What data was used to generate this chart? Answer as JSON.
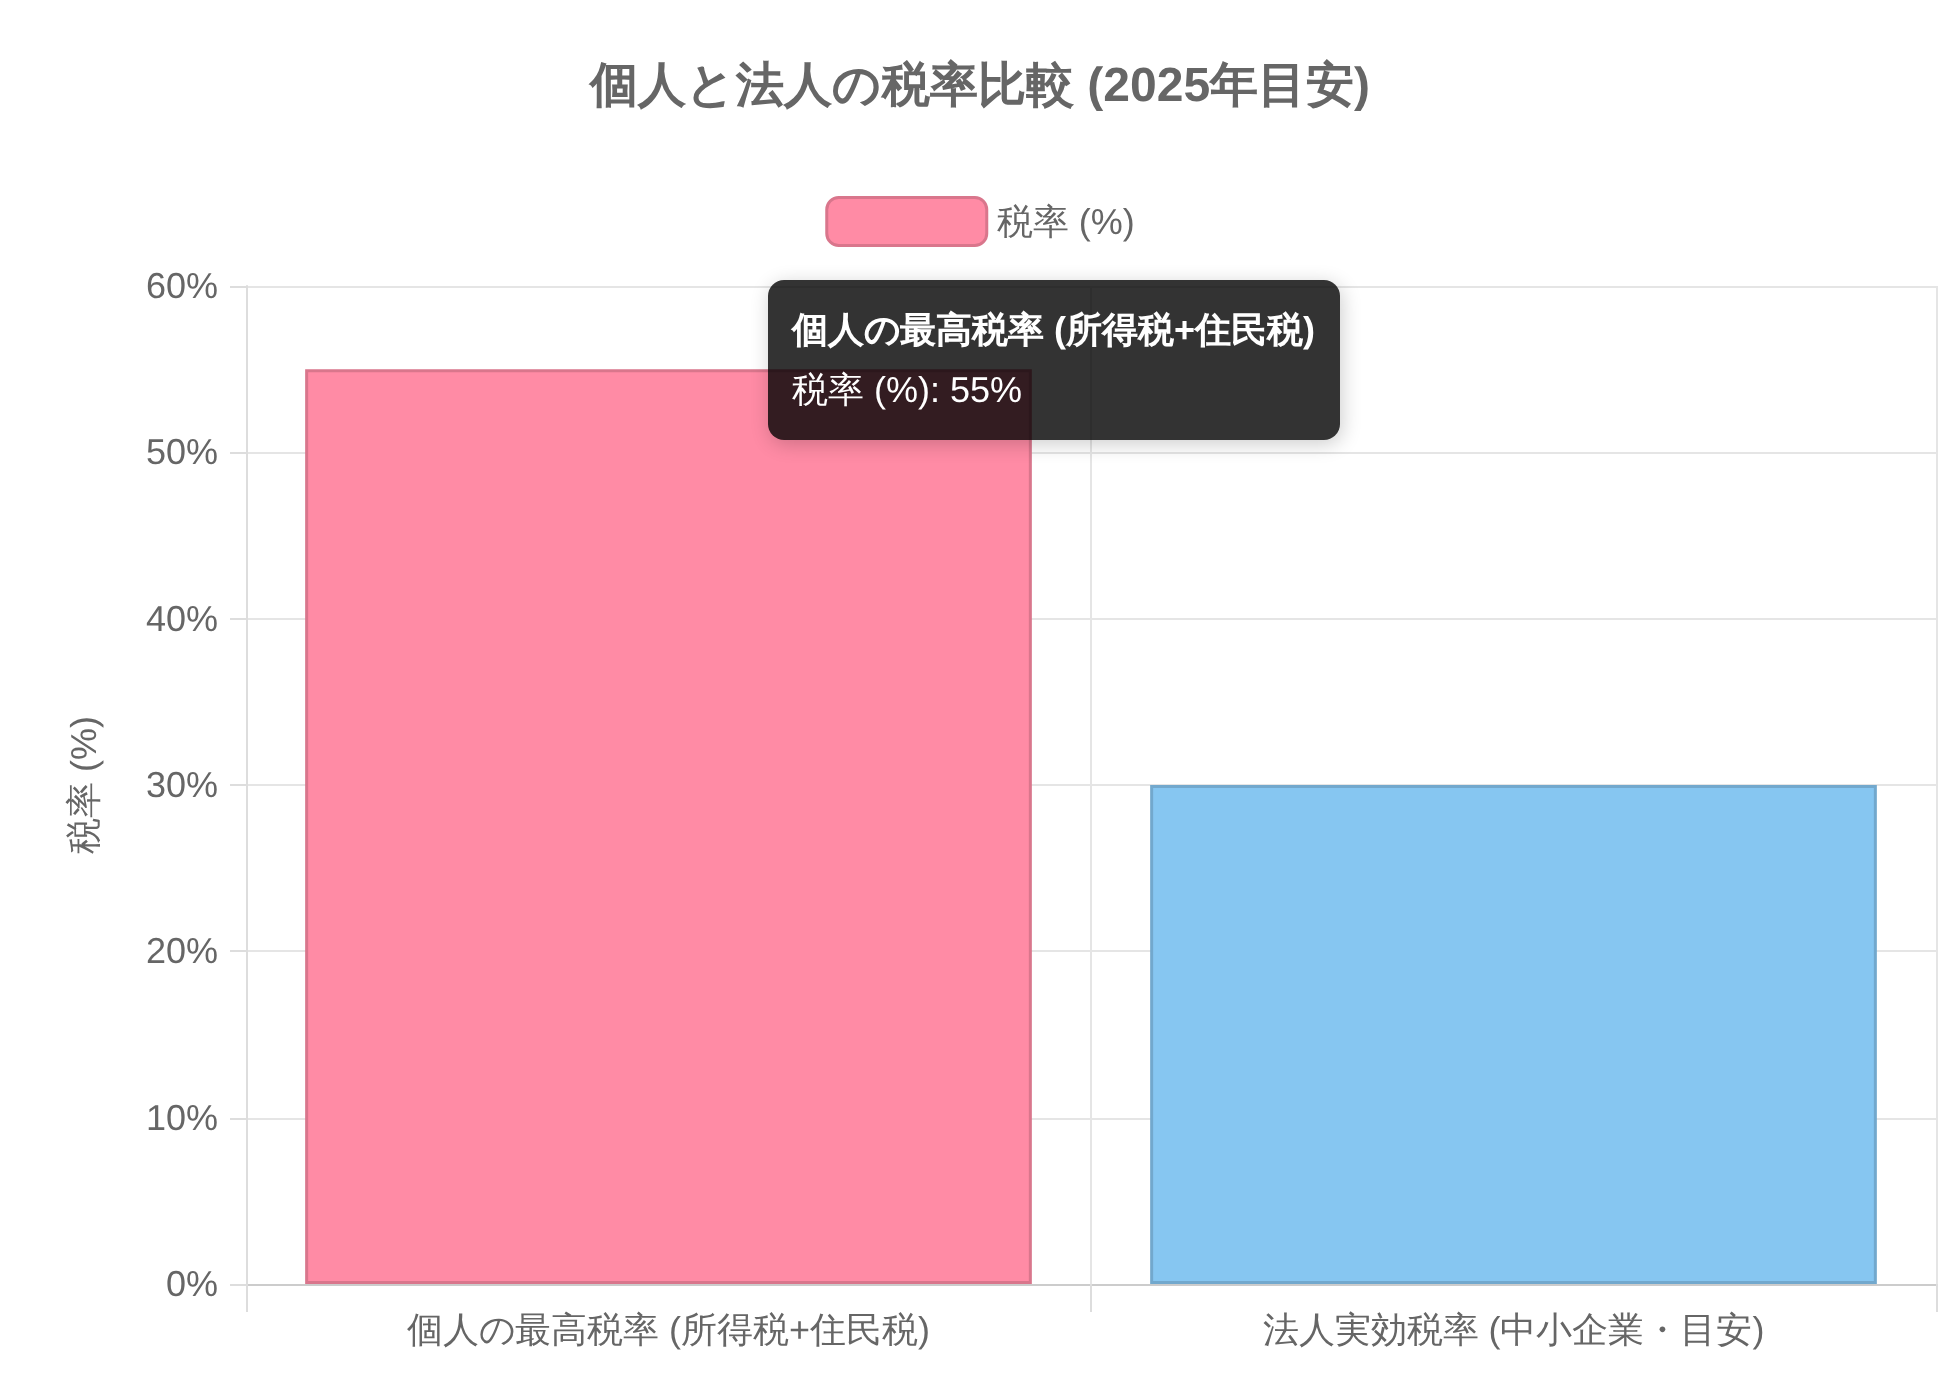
{
  "chart_data": {
    "type": "bar",
    "title": "個人と法人の税率比較 (2025年目安)",
    "ylabel": "税率 (%)",
    "categories": [
      "個人の最高税率 (所得税+住民税)",
      "法人実効税率 (中小企業・目安)"
    ],
    "series": [
      {
        "name": "税率 (%)",
        "values": [
          55,
          30
        ],
        "colors": [
          "#ff8ba5",
          "#86c6f1"
        ]
      }
    ],
    "ylim": [
      0,
      60
    ],
    "yticks": [
      {
        "value": 0,
        "label": "0%"
      },
      {
        "value": 10,
        "label": "10%"
      },
      {
        "value": 20,
        "label": "20%"
      },
      {
        "value": 30,
        "label": "30%"
      },
      {
        "value": 40,
        "label": "40%"
      },
      {
        "value": 50,
        "label": "50%"
      },
      {
        "value": 60,
        "label": "60%"
      }
    ],
    "grid": true,
    "legend": "top",
    "annotations": [
      "個人の最高税率 (所得税+住民税)\n税率 (%): 55%"
    ]
  }
}
